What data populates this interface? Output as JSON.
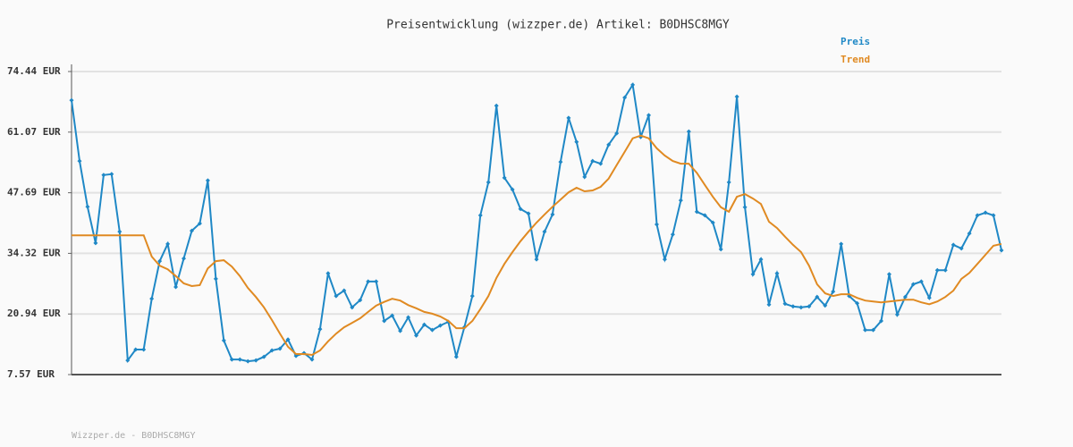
{
  "chart_data": {
    "type": "line",
    "title": "Preisentwicklung (wizzper.de) Artikel: B0DHSC8MGY",
    "footer": "Wizzper.de - B0DHSC8MGY",
    "ylim": [
      7.57,
      74.44
    ],
    "yticks": [
      {
        "value": 7.57,
        "label": "7.57 EUR"
      },
      {
        "value": 20.94,
        "label": "20.94 EUR"
      },
      {
        "value": 34.32,
        "label": "34.32 EUR"
      },
      {
        "value": 47.69,
        "label": "47.69 EUR"
      },
      {
        "value": 61.07,
        "label": "61.07 EUR"
      },
      {
        "value": 74.44,
        "label": "74.44 EUR"
      }
    ],
    "grid": true,
    "series": [
      {
        "name": "Preis",
        "color": "#1f88c6",
        "markers": true,
        "values": [
          68.1,
          54.7,
          44.6,
          36.6,
          51.6,
          51.8,
          39.1,
          10.7,
          13.1,
          13.1,
          24.3,
          32.6,
          36.4,
          26.9,
          33.2,
          39.3,
          40.9,
          50.4,
          28.7,
          15.1,
          10.9,
          10.9,
          10.5,
          10.7,
          11.5,
          12.9,
          13.3,
          15.3,
          11.7,
          12.3,
          10.9,
          17.6,
          29.9,
          24.9,
          26.1,
          22.4,
          24.0,
          28.1,
          28.1,
          19.4,
          20.6,
          17.2,
          20.2,
          16.2,
          18.6,
          17.4,
          18.4,
          19.2,
          11.5,
          18.0,
          24.9,
          42.7,
          50.0,
          66.9,
          51.0,
          48.4,
          44.1,
          43.1,
          33.0,
          39.1,
          42.9,
          54.5,
          64.2,
          58.9,
          51.2,
          54.7,
          54.1,
          58.3,
          60.8,
          68.7,
          71.5,
          60.0,
          64.8,
          40.7,
          33.0,
          38.5,
          46.0,
          61.2,
          43.5,
          42.7,
          41.1,
          35.2,
          50.0,
          68.9,
          44.5,
          29.7,
          33.0,
          23.0,
          29.9,
          23.2,
          22.6,
          22.4,
          22.6,
          24.7,
          22.8,
          25.9,
          36.4,
          24.9,
          23.3,
          17.4,
          17.4,
          19.4,
          29.7,
          20.8,
          24.7,
          27.5,
          28.1,
          24.5,
          30.6,
          30.6,
          36.2,
          35.4,
          38.7,
          42.7,
          43.3,
          42.7,
          35.0
        ]
      },
      {
        "name": "Trend",
        "color": "#e08a22",
        "markers": false,
        "values": [
          38.3,
          38.3,
          38.3,
          38.3,
          38.3,
          38.3,
          38.3,
          38.3,
          38.3,
          38.3,
          33.6,
          31.6,
          30.8,
          29.3,
          27.7,
          27.1,
          27.3,
          31.0,
          32.6,
          32.8,
          31.4,
          29.3,
          26.7,
          24.7,
          22.4,
          19.6,
          16.6,
          13.7,
          12.1,
          12.1,
          11.9,
          12.9,
          14.9,
          16.6,
          18.0,
          19.0,
          20.0,
          21.4,
          22.8,
          23.6,
          24.3,
          23.9,
          22.9,
          22.2,
          21.4,
          21.0,
          20.4,
          19.4,
          17.8,
          17.8,
          19.4,
          22.0,
          24.9,
          28.9,
          32.0,
          34.6,
          37.0,
          39.1,
          41.1,
          42.9,
          44.6,
          46.2,
          47.8,
          48.8,
          48.0,
          48.2,
          49.0,
          50.8,
          53.8,
          56.7,
          59.7,
          60.3,
          59.7,
          57.5,
          55.9,
          54.7,
          54.1,
          54.1,
          52.1,
          49.4,
          46.8,
          44.5,
          43.5,
          46.8,
          47.4,
          46.4,
          45.2,
          41.3,
          39.9,
          38.0,
          36.2,
          34.6,
          31.6,
          27.5,
          25.5,
          24.9,
          25.3,
          25.3,
          24.5,
          23.9,
          23.7,
          23.5,
          23.7,
          23.9,
          24.1,
          24.1,
          23.5,
          23.1,
          23.7,
          24.7,
          26.1,
          28.7,
          30.0,
          32.0,
          34.0,
          36.0,
          36.4
        ]
      }
    ]
  }
}
